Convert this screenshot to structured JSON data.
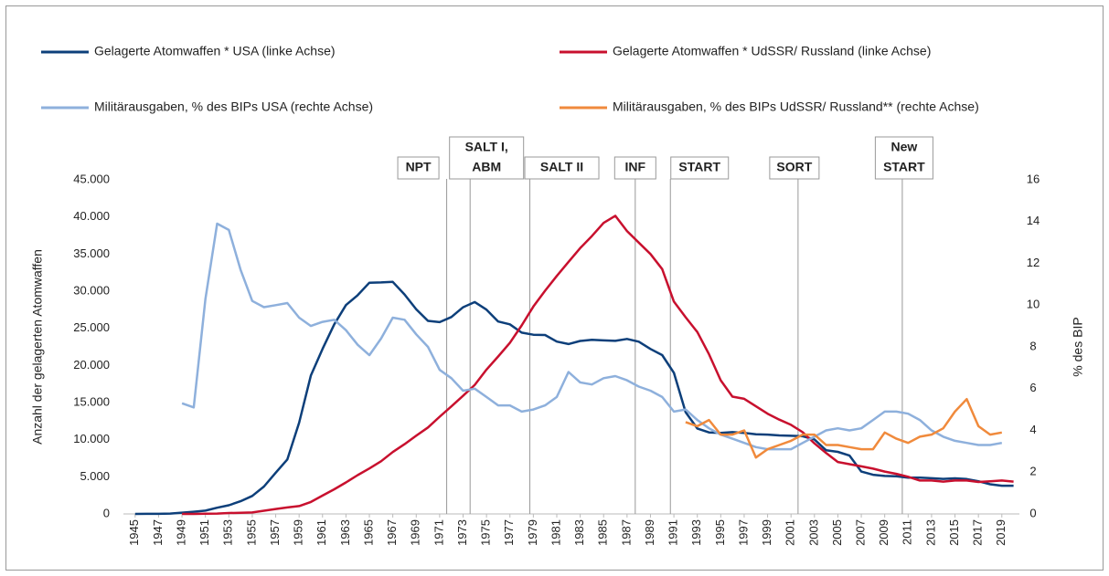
{
  "chart_data": {
    "type": "line",
    "ylabel": "Anzahl der gelagerten Atomwaffen",
    "y2label": "% des BIP",
    "legend": "top",
    "x": [
      1945,
      1946,
      1947,
      1948,
      1949,
      1950,
      1951,
      1952,
      1953,
      1954,
      1955,
      1956,
      1957,
      1958,
      1959,
      1960,
      1961,
      1962,
      1963,
      1964,
      1965,
      1966,
      1967,
      1968,
      1969,
      1970,
      1971,
      1972,
      1973,
      1974,
      1975,
      1976,
      1977,
      1978,
      1979,
      1980,
      1981,
      1982,
      1983,
      1984,
      1985,
      1986,
      1987,
      1988,
      1989,
      1990,
      1991,
      1992,
      1993,
      1994,
      1995,
      1996,
      1997,
      1998,
      1999,
      2000,
      2001,
      2002,
      2003,
      2004,
      2005,
      2006,
      2007,
      2008,
      2009,
      2010,
      2011,
      2012,
      2013,
      2014,
      2015,
      2016,
      2017,
      2018,
      2019,
      2020
    ],
    "xlim": [
      1944,
      2020.5
    ],
    "xticks": [
      1945,
      1947,
      1949,
      1951,
      1953,
      1955,
      1957,
      1959,
      1961,
      1963,
      1965,
      1967,
      1969,
      1971,
      1973,
      1975,
      1977,
      1979,
      1981,
      1983,
      1985,
      1987,
      1989,
      1991,
      1993,
      1995,
      1997,
      1999,
      2001,
      2003,
      2005,
      2007,
      2009,
      2011,
      2013,
      2015,
      2017,
      2019
    ],
    "ylim": [
      0,
      45000
    ],
    "yticks": [
      0,
      {
        "value": 5000,
        "label": "5.000"
      },
      {
        "value": 10000,
        "label": "10.000"
      },
      {
        "value": 15000,
        "label": "15.000"
      },
      {
        "value": 20000,
        "label": "20.000"
      },
      {
        "value": 25000,
        "label": "25.000"
      },
      {
        "value": 30000,
        "label": "30.000"
      },
      {
        "value": 35000,
        "label": "35.000"
      },
      {
        "value": 40000,
        "label": "40.000"
      },
      {
        "value": 45000,
        "label": "45.000"
      }
    ],
    "y2lim": [
      0,
      16
    ],
    "y2ticks": [
      0,
      2,
      4,
      6,
      8,
      10,
      12,
      14,
      16
    ],
    "series": [
      {
        "name": "Gelagerte Atomwaffen * USA (linke Achse)",
        "color": "#0d3f7a",
        "values": [
          2,
          9,
          13,
          50,
          170,
          299,
          438,
          841,
          1169,
          1703,
          2422,
          3692,
          5543,
          7345,
          12298,
          18638,
          22229,
          25540,
          28133,
          29463,
          31139,
          31175,
          31255,
          29561,
          27552,
          26008,
          25830,
          26516,
          27835,
          28537,
          27519,
          25914,
          25542,
          24418,
          24138,
          24104,
          23208,
          22886,
          23305,
          23459,
          23368,
          23317,
          23575,
          23205,
          22217,
          21392,
          19008,
          13708,
          11511,
          10979,
          10904,
          11011,
          10903,
          10732,
          10685,
          10577,
          10526,
          10457,
          10027,
          8570,
          8360,
          7853,
          5709,
          5273,
          5113,
          5066,
          4897,
          4881,
          4804,
          4717,
          4800,
          4700,
          4400,
          4000,
          3800,
          3800
        ]
      },
      {
        "name": "Gelagerte Atomwaffen * UdSSR/ Russland (linke Achse)",
        "color": "#c8102e",
        "values": [
          null,
          null,
          null,
          null,
          1,
          5,
          25,
          50,
          120,
          150,
          200,
          426,
          660,
          869,
          1060,
          1605,
          2471,
          3322,
          4238,
          5221,
          6129,
          7089,
          8339,
          9399,
          10538,
          11643,
          13092,
          14478,
          15915,
          17385,
          19443,
          21205,
          23044,
          25393,
          27935,
          30062,
          32049,
          33952,
          35804,
          37431,
          39197,
          40159,
          38107,
          36538,
          35000,
          32980,
          28595,
          26500,
          24500,
          21500,
          18000,
          15800,
          15500,
          14500,
          13500,
          12700,
          12000,
          11000,
          9500,
          8200,
          7000,
          6700,
          6400,
          6100,
          5700,
          5400,
          5000,
          4500,
          4500,
          4350,
          4500,
          4500,
          4300,
          4400,
          4500,
          4350
        ]
      },
      {
        "name": "Militärausgaben, % des BIPs USA (rechte Achse)",
        "color": "#8eb0dc",
        "axis": "y2",
        "values": [
          null,
          null,
          null,
          null,
          5.3,
          5.1,
          10.3,
          13.9,
          13.6,
          11.7,
          10.2,
          9.9,
          10.0,
          10.1,
          9.4,
          9.0,
          9.2,
          9.3,
          8.8,
          8.1,
          7.6,
          8.4,
          9.4,
          9.3,
          8.6,
          8.0,
          6.9,
          6.5,
          5.9,
          6.0,
          5.6,
          5.2,
          5.2,
          4.9,
          5.0,
          5.2,
          5.6,
          6.8,
          6.3,
          6.2,
          6.5,
          6.6,
          6.4,
          6.1,
          5.9,
          5.6,
          4.9,
          5.0,
          4.5,
          4.1,
          3.8,
          3.6,
          3.4,
          3.2,
          3.1,
          3.1,
          3.1,
          3.4,
          3.7,
          4.0,
          4.1,
          4.0,
          4.1,
          4.5,
          4.9,
          4.9,
          4.8,
          4.5,
          4.0,
          3.7,
          3.5,
          3.4,
          3.3,
          3.3,
          3.4,
          null
        ]
      },
      {
        "name": "Militärausgaben, % des BIPs UdSSR/ Russland** (rechte Achse)",
        "color": "#f08a3c",
        "axis": "y2",
        "values": [
          null,
          null,
          null,
          null,
          null,
          null,
          null,
          null,
          null,
          null,
          null,
          null,
          null,
          null,
          null,
          null,
          null,
          null,
          null,
          null,
          null,
          null,
          null,
          null,
          null,
          null,
          null,
          null,
          null,
          null,
          null,
          null,
          null,
          null,
          null,
          null,
          null,
          null,
          null,
          null,
          null,
          null,
          null,
          null,
          null,
          null,
          null,
          4.4,
          4.2,
          4.5,
          3.8,
          3.8,
          4.0,
          2.7,
          3.1,
          3.3,
          3.5,
          3.8,
          3.8,
          3.3,
          3.3,
          3.2,
          3.1,
          3.1,
          3.9,
          3.6,
          3.4,
          3.7,
          3.8,
          4.1,
          4.9,
          5.5,
          4.2,
          3.8,
          3.9,
          null
        ]
      }
    ],
    "annotations": [
      {
        "label": [
          "NPT"
        ],
        "x": 1971.6
      },
      {
        "label": [
          "SALT I,",
          "ABM"
        ],
        "x": 1973.6
      },
      {
        "label": [
          "SALT II"
        ],
        "x": 1978.7
      },
      {
        "label": [
          "INF"
        ],
        "x": 1987.7
      },
      {
        "label": [
          "START"
        ],
        "x": 1990.7
      },
      {
        "label": [
          "SORT"
        ],
        "x": 2001.6
      },
      {
        "label": [
          "New",
          "START"
        ],
        "x": 2010.5
      }
    ]
  }
}
